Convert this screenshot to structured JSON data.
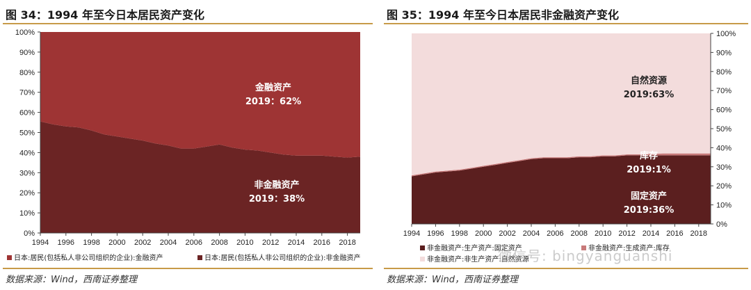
{
  "charts": [
    {
      "title": "图 34：1994 年至今日本居民资产变化",
      "source": "数据来源：Wind，西南证券整理",
      "chart_data": {
        "type": "area",
        "stacked": true,
        "percent": true,
        "x": [
          1994,
          1995,
          1996,
          1997,
          1998,
          1999,
          2000,
          2001,
          2002,
          2003,
          2004,
          2005,
          2006,
          2007,
          2008,
          2009,
          2010,
          2011,
          2012,
          2013,
          2014,
          2015,
          2016,
          2017,
          2018,
          2019
        ],
        "x_ticks": [
          "1994",
          "1996",
          "1998",
          "2000",
          "2002",
          "2004",
          "2006",
          "2008",
          "2010",
          "2012",
          "2014",
          "2016",
          "2018"
        ],
        "y_ticks": [
          "0%",
          "10%",
          "20%",
          "30%",
          "40%",
          "50%",
          "60%",
          "70%",
          "80%",
          "90%",
          "100%"
        ],
        "ylim": [
          0,
          100
        ],
        "y_axis_side": "left",
        "series": [
          {
            "name": "日本:居民(包括私人非公司组织的企业):非金融资产",
            "color": "#6b2424",
            "values": [
              55.5,
              54,
              53,
              52.5,
              51,
              49,
              48,
              47,
              46,
              44.5,
              43.5,
              42,
              42,
              43,
              44,
              42.5,
              41.5,
              41,
              40,
              39,
              38.5,
              38.5,
              38.5,
              38,
              37.5,
              38
            ]
          },
          {
            "name": "日本:居民(包括私人非公司组织的企业):金融资产",
            "color": "#9e3434",
            "values": [
              44.5,
              46,
              47,
              47.5,
              49,
              51,
              52,
              53,
              54,
              55.5,
              56.5,
              58,
              58,
              57,
              56,
              57.5,
              58.5,
              59,
              60,
              61,
              61.5,
              61.5,
              61.5,
              62,
              62.5,
              62
            ]
          }
        ],
        "legend": [
          "日本:居民(包括私人非公司组织的企业):金融资产",
          "日本:居民(包括私人非公司组织的企业):非金融资产"
        ],
        "legend_position": "bottom",
        "annotations": [
          {
            "line1": "金融资产",
            "line2": "2019：62%",
            "color": "#ffffff"
          },
          {
            "line1": "非金融资产",
            "line2": "2019：38%",
            "color": "#ffffff"
          }
        ]
      }
    },
    {
      "title": "图 35：1994 年至今日本居民非金融资产变化",
      "source": "数据来源：Wind，西南证券整理",
      "chart_data": {
        "type": "area",
        "stacked": true,
        "percent": true,
        "x": [
          1994,
          1995,
          1996,
          1997,
          1998,
          1999,
          2000,
          2001,
          2002,
          2003,
          2004,
          2005,
          2006,
          2007,
          2008,
          2009,
          2010,
          2011,
          2012,
          2013,
          2014,
          2015,
          2016,
          2017,
          2018,
          2019
        ],
        "x_ticks": [
          "1994",
          "1996",
          "1998",
          "2000",
          "2002",
          "2004",
          "2006",
          "2008",
          "2010",
          "2012",
          "2014",
          "2016",
          "2018"
        ],
        "y_ticks": [
          "0%",
          "10%",
          "20%",
          "30%",
          "40%",
          "50%",
          "60%",
          "70%",
          "80%",
          "90%",
          "100%"
        ],
        "ylim": [
          0,
          100
        ],
        "y_axis_side": "right",
        "series": [
          {
            "name": "非金融资产:生产资产:固定资产",
            "color": "#5b1f1f",
            "values": [
              25,
              26,
              27,
              27.5,
              28,
              29,
              30,
              31,
              32,
              33,
              34,
              34.5,
              34.5,
              34.5,
              35,
              35,
              35.5,
              35.5,
              36,
              36,
              36,
              36,
              36,
              36,
              36,
              36
            ]
          },
          {
            "name": "非金融资产:生成资产:库存",
            "color": "#c87a7a",
            "values": [
              0.5,
              0.5,
              0.5,
              0.5,
              0.5,
              0.5,
              0.5,
              0.5,
              0.5,
              0.5,
              0.5,
              0.5,
              0.5,
              0.5,
              0.5,
              0.5,
              0.5,
              0.5,
              0.5,
              0.5,
              0.8,
              1,
              1,
              1,
              1,
              1
            ]
          },
          {
            "name": "非金融资产:非生产资产:自然资源",
            "color": "#f3dcdc",
            "values": [
              74.5,
              73.5,
              72.5,
              72,
              71.5,
              70.5,
              69.5,
              68.5,
              67.5,
              66.5,
              65.5,
              65,
              65,
              65,
              64.5,
              64.5,
              64,
              64,
              63.5,
              63.5,
              63.2,
              63,
              63,
              63,
              63,
              63
            ]
          }
        ],
        "legend": [
          "非金融资产:生产资产:固定资产",
          "非金融资产:生成资产:库存",
          "非金融资产:非生产资产:自然资源"
        ],
        "legend_position": "bottom",
        "annotations": [
          {
            "line1": "自然资源",
            "line2": "2019:63%",
            "color": "#222222"
          },
          {
            "line1": "库存",
            "line2": "2019:1%",
            "color": "#ffffff"
          },
          {
            "line1": "固定资产",
            "line2": "2019:36%",
            "color": "#ffffff"
          }
        ]
      }
    }
  ],
  "watermark": "微信号: bingyanguanshi"
}
